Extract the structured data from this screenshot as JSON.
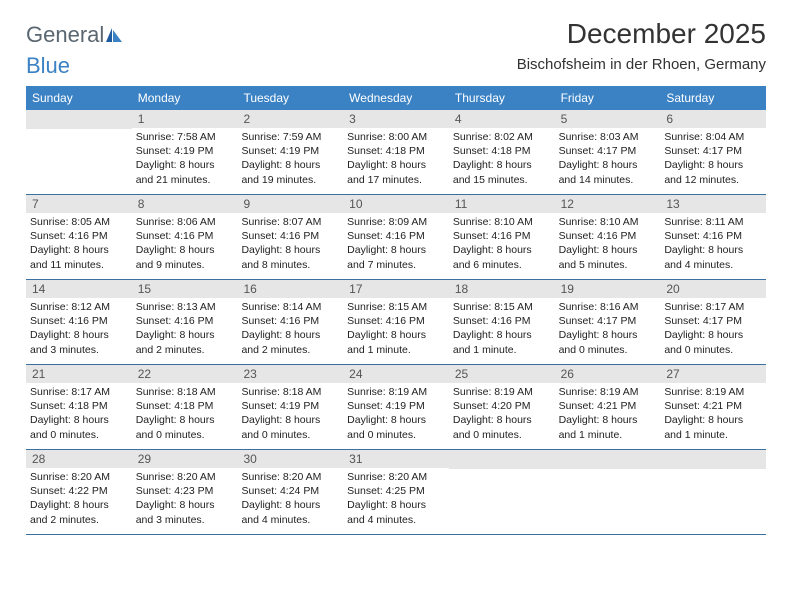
{
  "logo": {
    "general": "General",
    "blue": "Blue"
  },
  "title": "December 2025",
  "subtitle": "Bischofsheim in der Rhoen, Germany",
  "colors": {
    "header_bg": "#3b82c4",
    "header_text": "#ffffff",
    "daynum_bg": "#e6e6e6",
    "daynum_text": "#555555",
    "border": "#3b6fa0",
    "logo_gray": "#5a6670",
    "logo_blue": "#3b82c4"
  },
  "day_headers": [
    "Sunday",
    "Monday",
    "Tuesday",
    "Wednesday",
    "Thursday",
    "Friday",
    "Saturday"
  ],
  "weeks": [
    [
      {
        "n": "",
        "lines": []
      },
      {
        "n": "1",
        "lines": [
          "Sunrise: 7:58 AM",
          "Sunset: 4:19 PM",
          "Daylight: 8 hours",
          "and 21 minutes."
        ]
      },
      {
        "n": "2",
        "lines": [
          "Sunrise: 7:59 AM",
          "Sunset: 4:19 PM",
          "Daylight: 8 hours",
          "and 19 minutes."
        ]
      },
      {
        "n": "3",
        "lines": [
          "Sunrise: 8:00 AM",
          "Sunset: 4:18 PM",
          "Daylight: 8 hours",
          "and 17 minutes."
        ]
      },
      {
        "n": "4",
        "lines": [
          "Sunrise: 8:02 AM",
          "Sunset: 4:18 PM",
          "Daylight: 8 hours",
          "and 15 minutes."
        ]
      },
      {
        "n": "5",
        "lines": [
          "Sunrise: 8:03 AM",
          "Sunset: 4:17 PM",
          "Daylight: 8 hours",
          "and 14 minutes."
        ]
      },
      {
        "n": "6",
        "lines": [
          "Sunrise: 8:04 AM",
          "Sunset: 4:17 PM",
          "Daylight: 8 hours",
          "and 12 minutes."
        ]
      }
    ],
    [
      {
        "n": "7",
        "lines": [
          "Sunrise: 8:05 AM",
          "Sunset: 4:16 PM",
          "Daylight: 8 hours",
          "and 11 minutes."
        ]
      },
      {
        "n": "8",
        "lines": [
          "Sunrise: 8:06 AM",
          "Sunset: 4:16 PM",
          "Daylight: 8 hours",
          "and 9 minutes."
        ]
      },
      {
        "n": "9",
        "lines": [
          "Sunrise: 8:07 AM",
          "Sunset: 4:16 PM",
          "Daylight: 8 hours",
          "and 8 minutes."
        ]
      },
      {
        "n": "10",
        "lines": [
          "Sunrise: 8:09 AM",
          "Sunset: 4:16 PM",
          "Daylight: 8 hours",
          "and 7 minutes."
        ]
      },
      {
        "n": "11",
        "lines": [
          "Sunrise: 8:10 AM",
          "Sunset: 4:16 PM",
          "Daylight: 8 hours",
          "and 6 minutes."
        ]
      },
      {
        "n": "12",
        "lines": [
          "Sunrise: 8:10 AM",
          "Sunset: 4:16 PM",
          "Daylight: 8 hours",
          "and 5 minutes."
        ]
      },
      {
        "n": "13",
        "lines": [
          "Sunrise: 8:11 AM",
          "Sunset: 4:16 PM",
          "Daylight: 8 hours",
          "and 4 minutes."
        ]
      }
    ],
    [
      {
        "n": "14",
        "lines": [
          "Sunrise: 8:12 AM",
          "Sunset: 4:16 PM",
          "Daylight: 8 hours",
          "and 3 minutes."
        ]
      },
      {
        "n": "15",
        "lines": [
          "Sunrise: 8:13 AM",
          "Sunset: 4:16 PM",
          "Daylight: 8 hours",
          "and 2 minutes."
        ]
      },
      {
        "n": "16",
        "lines": [
          "Sunrise: 8:14 AM",
          "Sunset: 4:16 PM",
          "Daylight: 8 hours",
          "and 2 minutes."
        ]
      },
      {
        "n": "17",
        "lines": [
          "Sunrise: 8:15 AM",
          "Sunset: 4:16 PM",
          "Daylight: 8 hours",
          "and 1 minute."
        ]
      },
      {
        "n": "18",
        "lines": [
          "Sunrise: 8:15 AM",
          "Sunset: 4:16 PM",
          "Daylight: 8 hours",
          "and 1 minute."
        ]
      },
      {
        "n": "19",
        "lines": [
          "Sunrise: 8:16 AM",
          "Sunset: 4:17 PM",
          "Daylight: 8 hours",
          "and 0 minutes."
        ]
      },
      {
        "n": "20",
        "lines": [
          "Sunrise: 8:17 AM",
          "Sunset: 4:17 PM",
          "Daylight: 8 hours",
          "and 0 minutes."
        ]
      }
    ],
    [
      {
        "n": "21",
        "lines": [
          "Sunrise: 8:17 AM",
          "Sunset: 4:18 PM",
          "Daylight: 8 hours",
          "and 0 minutes."
        ]
      },
      {
        "n": "22",
        "lines": [
          "Sunrise: 8:18 AM",
          "Sunset: 4:18 PM",
          "Daylight: 8 hours",
          "and 0 minutes."
        ]
      },
      {
        "n": "23",
        "lines": [
          "Sunrise: 8:18 AM",
          "Sunset: 4:19 PM",
          "Daylight: 8 hours",
          "and 0 minutes."
        ]
      },
      {
        "n": "24",
        "lines": [
          "Sunrise: 8:19 AM",
          "Sunset: 4:19 PM",
          "Daylight: 8 hours",
          "and 0 minutes."
        ]
      },
      {
        "n": "25",
        "lines": [
          "Sunrise: 8:19 AM",
          "Sunset: 4:20 PM",
          "Daylight: 8 hours",
          "and 0 minutes."
        ]
      },
      {
        "n": "26",
        "lines": [
          "Sunrise: 8:19 AM",
          "Sunset: 4:21 PM",
          "Daylight: 8 hours",
          "and 1 minute."
        ]
      },
      {
        "n": "27",
        "lines": [
          "Sunrise: 8:19 AM",
          "Sunset: 4:21 PM",
          "Daylight: 8 hours",
          "and 1 minute."
        ]
      }
    ],
    [
      {
        "n": "28",
        "lines": [
          "Sunrise: 8:20 AM",
          "Sunset: 4:22 PM",
          "Daylight: 8 hours",
          "and 2 minutes."
        ]
      },
      {
        "n": "29",
        "lines": [
          "Sunrise: 8:20 AM",
          "Sunset: 4:23 PM",
          "Daylight: 8 hours",
          "and 3 minutes."
        ]
      },
      {
        "n": "30",
        "lines": [
          "Sunrise: 8:20 AM",
          "Sunset: 4:24 PM",
          "Daylight: 8 hours",
          "and 4 minutes."
        ]
      },
      {
        "n": "31",
        "lines": [
          "Sunrise: 8:20 AM",
          "Sunset: 4:25 PM",
          "Daylight: 8 hours",
          "and 4 minutes."
        ]
      },
      {
        "n": "",
        "lines": []
      },
      {
        "n": "",
        "lines": []
      },
      {
        "n": "",
        "lines": []
      }
    ]
  ]
}
